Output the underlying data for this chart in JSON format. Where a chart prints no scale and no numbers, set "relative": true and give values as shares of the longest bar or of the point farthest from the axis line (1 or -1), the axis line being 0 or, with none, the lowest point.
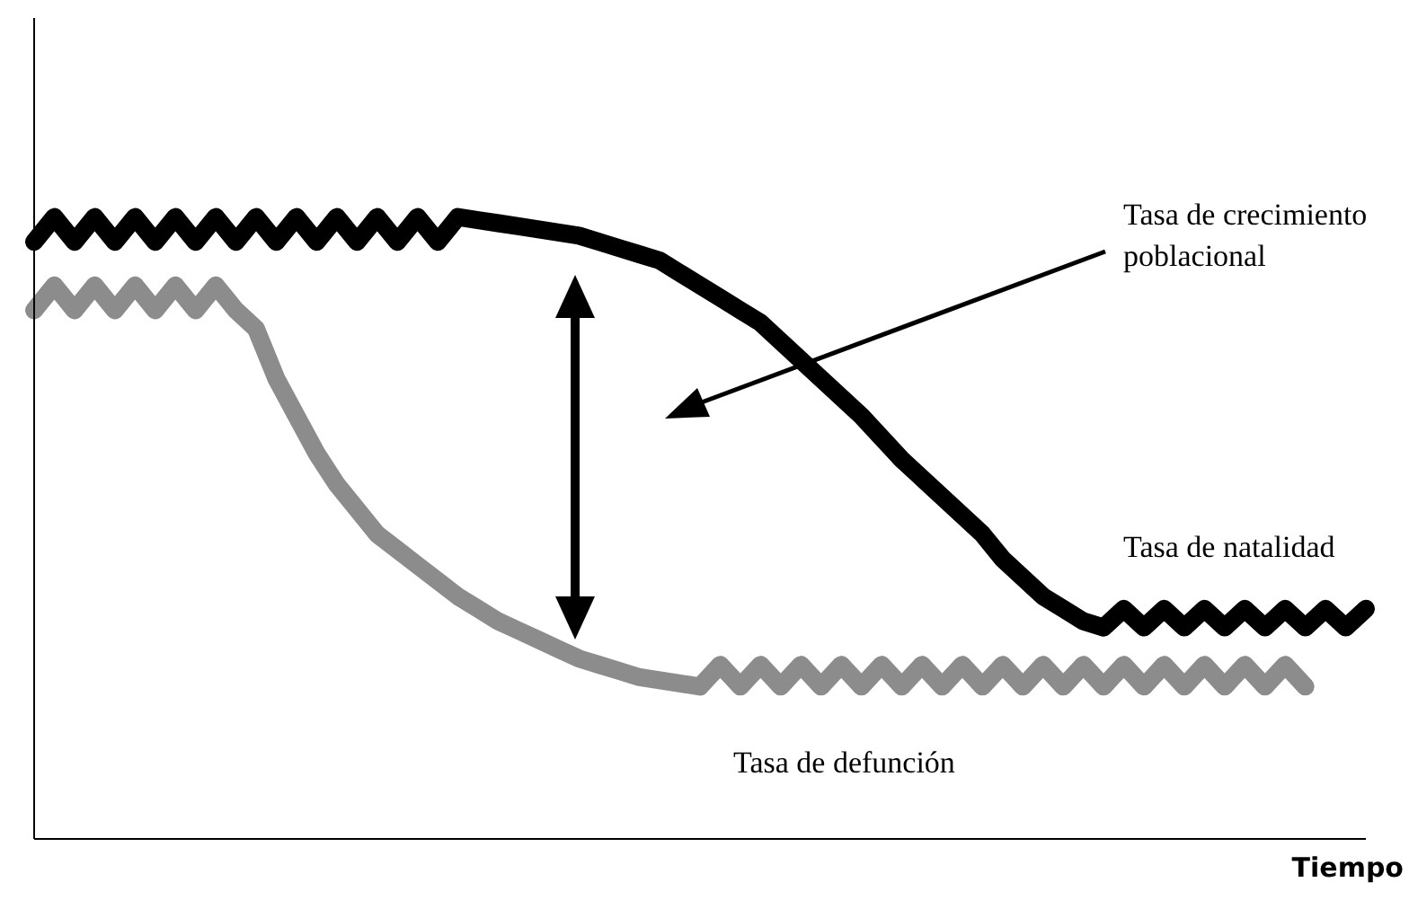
{
  "chart_data": {
    "type": "line",
    "relative": true,
    "xlabel": "Tiempo",
    "annotations": [
      "Tasa de crecimiento poblacional"
    ],
    "categories": [
      null,
      null,
      null,
      null,
      null,
      null,
      null,
      null,
      null,
      null,
      null,
      null,
      null,
      null,
      null,
      null,
      null,
      null,
      null,
      null,
      null,
      null,
      null,
      null,
      null,
      null,
      null,
      null,
      null,
      null,
      null,
      null,
      null,
      null,
      null,
      null,
      null,
      null,
      null,
      null,
      null,
      null,
      null,
      null,
      null,
      null,
      null,
      null,
      null,
      null,
      null,
      null,
      null,
      null,
      null,
      null,
      null,
      null,
      null,
      null,
      null,
      null,
      null,
      null,
      null,
      null,
      null
    ],
    "series": [
      {
        "name": "Tasa de natalidad",
        "color": "#000000",
        "values": [
          0.96,
          1.0,
          0.96,
          1.0,
          0.96,
          1.0,
          0.96,
          1.0,
          0.96,
          1.0,
          0.96,
          1.0,
          0.96,
          1.0,
          0.96,
          1.0,
          0.96,
          1.0,
          0.96,
          1.0,
          0.96,
          1.0,
          0.995,
          0.99,
          0.985,
          0.98,
          0.975,
          0.97,
          0.96,
          0.95,
          0.94,
          0.93,
          0.91,
          0.89,
          0.87,
          0.85,
          0.83,
          0.8,
          0.77,
          0.74,
          0.71,
          0.68,
          0.645,
          0.61,
          0.58,
          0.55,
          0.52,
          0.49,
          0.45,
          0.42,
          0.39,
          0.37,
          0.35,
          0.34,
          0.37,
          0.34,
          0.37,
          0.34,
          0.37,
          0.34,
          0.37,
          0.34,
          0.37,
          0.34,
          0.37,
          0.34,
          0.37
        ]
      },
      {
        "name": "Tasa de defunción",
        "color": "#8c8c8c",
        "values": [
          0.85,
          0.89,
          0.85,
          0.89,
          0.85,
          0.89,
          0.85,
          0.89,
          0.85,
          0.89,
          0.85,
          0.82,
          0.74,
          0.68,
          0.62,
          0.57,
          0.53,
          0.49,
          0.465,
          0.44,
          0.415,
          0.39,
          0.37,
          0.35,
          0.335,
          0.32,
          0.305,
          0.29,
          0.28,
          0.27,
          0.26,
          0.255,
          0.25,
          0.245,
          0.28,
          0.245,
          0.28,
          0.245,
          0.28,
          0.245,
          0.28,
          0.245,
          0.28,
          0.245,
          0.28,
          0.245,
          0.28,
          0.245,
          0.28,
          0.245,
          0.28,
          0.245,
          0.28,
          0.245,
          0.28,
          0.245,
          0.28,
          0.245,
          0.28,
          0.245,
          0.28,
          0.245,
          0.28,
          0.245,
          null,
          null,
          null
        ]
      }
    ]
  }
}
